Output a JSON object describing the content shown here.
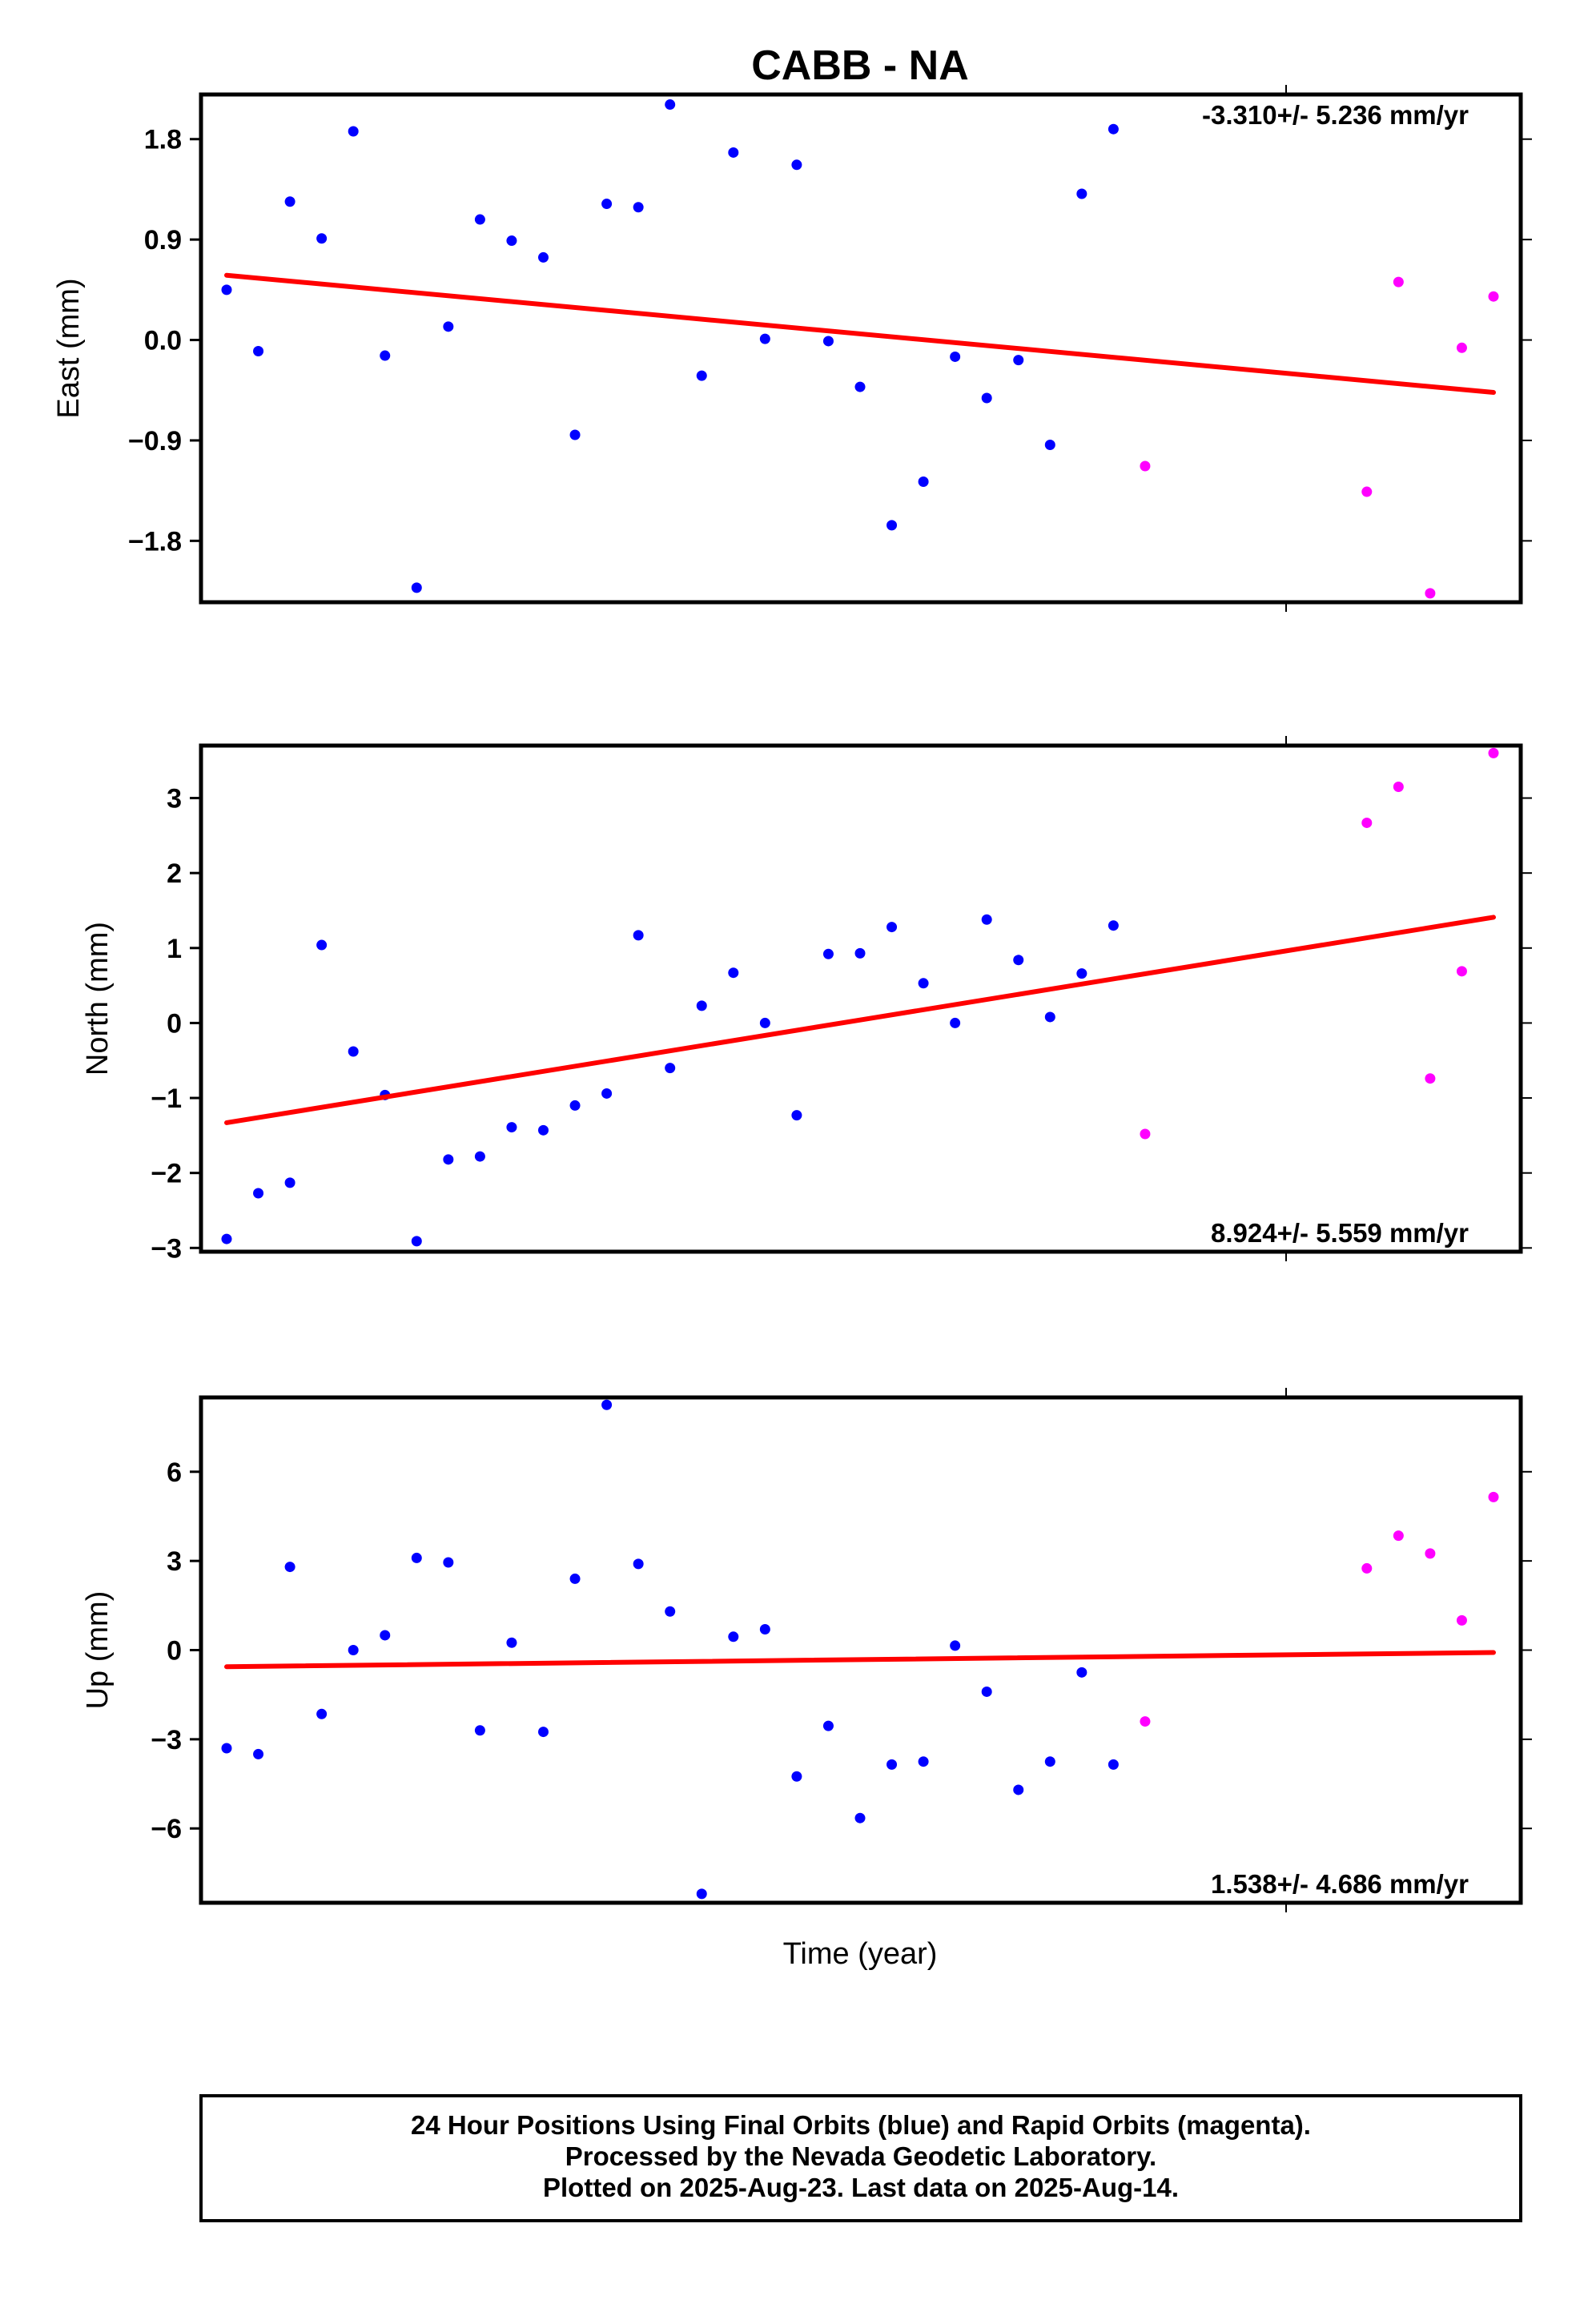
{
  "chart_data": {
    "type": "scatter",
    "title": "CABB - NA",
    "xlabel": "Time (year)",
    "colors": {
      "final": "#0000ff",
      "rapid": "#ff00ff",
      "trend": "#ff0000"
    },
    "panels": [
      {
        "ylabel": "East (mm)",
        "ylim": [
          -2.35,
          2.2
        ],
        "yticks": [
          -1.8,
          -0.9,
          0.0,
          0.9,
          1.8
        ],
        "ytick_labels": [
          "−1.8",
          "−0.9",
          "0.0",
          "0.9",
          "1.8"
        ],
        "rate_label": "-3.310+/- 5.236 mm/yr",
        "rate_position": "top-right",
        "trend": {
          "start": 0.58,
          "end": -0.47
        },
        "final": [
          0.45,
          -0.1,
          1.24,
          0.91,
          1.87,
          -0.14,
          -2.22,
          0.12,
          1.08,
          0.89,
          0.74,
          -0.85,
          1.22,
          1.19,
          2.11,
          -0.32,
          1.68,
          0.01,
          1.57,
          -0.01,
          -0.42,
          -1.66,
          -1.27,
          -0.15,
          -0.52,
          -0.18,
          -0.94,
          1.31,
          1.89
        ],
        "rapid": [
          -1.13,
          -1.36,
          0.52,
          -2.27,
          -0.07,
          0.39
        ]
      },
      {
        "ylabel": "North (mm)",
        "ylim": [
          -3.05,
          3.7
        ],
        "yticks": [
          -3,
          -2,
          -1,
          0,
          1,
          2,
          3
        ],
        "ytick_labels": [
          "−3",
          "−2",
          "−1",
          "0",
          "1",
          "2",
          "3"
        ],
        "rate_label": "8.924+/- 5.559 mm/yr",
        "rate_position": "bottom-right",
        "trend": {
          "start": -1.33,
          "end": 1.41
        },
        "final": [
          -2.88,
          -2.27,
          -2.13,
          1.04,
          -0.38,
          -0.96,
          -2.91,
          -1.82,
          -1.78,
          -1.39,
          -1.43,
          -1.1,
          -0.94,
          1.17,
          -0.6,
          0.23,
          0.67,
          0.0,
          -1.23,
          0.92,
          0.93,
          1.28,
          0.53,
          0.0,
          1.38,
          0.84,
          0.08,
          0.66,
          1.3
        ],
        "rapid": [
          -1.48,
          2.67,
          3.15,
          -0.74,
          0.69,
          3.6
        ]
      },
      {
        "ylabel": "Up (mm)",
        "ylim": [
          -8.5,
          8.5
        ],
        "yticks": [
          -6,
          -3,
          0,
          3,
          6
        ],
        "ytick_labels": [
          "−6",
          "−3",
          "0",
          "3",
          "6"
        ],
        "rate_label": "1.538+/- 4.686 mm/yr",
        "rate_position": "bottom-right",
        "trend": {
          "start": -0.56,
          "end": -0.08
        },
        "final": [
          -3.3,
          -3.5,
          2.8,
          -2.15,
          0.0,
          0.5,
          3.1,
          2.95,
          -2.7,
          0.25,
          -2.75,
          2.4,
          8.25,
          2.9,
          1.3,
          -8.2,
          0.45,
          0.7,
          -4.25,
          -2.55,
          -5.65,
          -3.85,
          -3.75,
          0.15,
          -1.4,
          -4.7,
          -3.75,
          -0.75,
          -3.85
        ],
        "rapid": [
          -2.4,
          2.75,
          3.85,
          3.25,
          1.0,
          5.15
        ]
      }
    ],
    "footer": [
      "24 Hour Positions Using Final Orbits (blue) and Rapid Orbits (magenta).",
      "Processed by the Nevada Geodetic Laboratory.",
      "Plotted on 2025-Aug-23. Last data on 2025-Aug-14."
    ]
  }
}
